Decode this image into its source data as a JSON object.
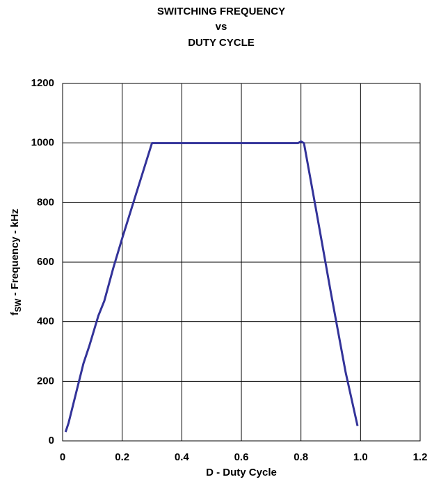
{
  "chart_data": {
    "type": "line",
    "title": [
      "SWITCHING FREQUENCY",
      "vs",
      "DUTY CYCLE"
    ],
    "x_label": "D - Duty Cycle",
    "y_label": {
      "main": "f",
      "sub": "SW",
      "rest": " - Frequency - kHz"
    },
    "x": [
      0.01,
      0.02,
      0.03,
      0.05,
      0.07,
      0.09,
      0.12,
      0.14,
      0.17,
      0.2,
      0.25,
      0.3,
      0.31,
      0.5,
      0.79,
      0.8,
      0.81,
      0.85,
      0.9,
      0.95,
      0.99
    ],
    "series": [
      {
        "color": "#333399",
        "values": [
          30,
          60,
          100,
          180,
          260,
          320,
          420,
          470,
          580,
          680,
          840,
          1000,
          1000,
          1000,
          1000,
          1005,
          1000,
          780,
          500,
          230,
          50
        ]
      }
    ],
    "xlim": [
      0,
      1.2
    ],
    "xticks": [
      0,
      0.2,
      0.4,
      0.6,
      0.8,
      {
        "value": 1,
        "label": "1.0"
      },
      1.2
    ],
    "ylim": [
      0,
      1200
    ],
    "yticks": [
      0,
      200,
      400,
      600,
      800,
      1000,
      1200
    ],
    "grid": true
  }
}
